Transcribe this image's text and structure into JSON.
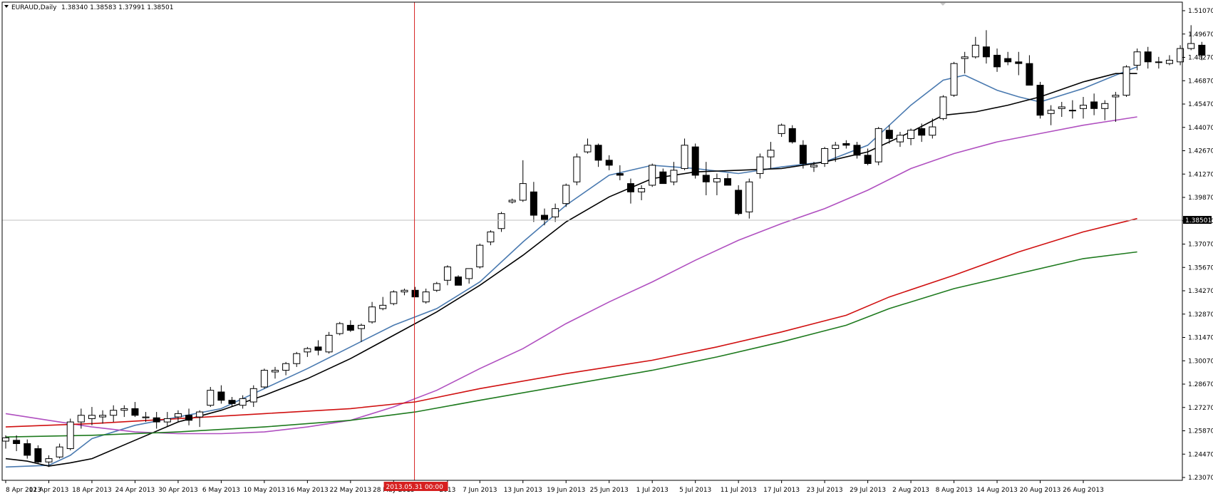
{
  "header": {
    "symbol": "EURAUD,Daily",
    "ohlc": "1.38340 1.38583 1.37991 1.38501"
  },
  "current_price_label": "1.38501",
  "crosshair_label": "2013.05.31 00:00",
  "colors": {
    "bull_fill": "#ffffff",
    "bear_fill": "#000000",
    "crosshair": "#d62020",
    "price_line": "#c0c0c0",
    "current_label_bg": "#000000"
  },
  "chart_data": {
    "type": "candlestick",
    "symbol": "EURAUD",
    "timeframe": "Daily",
    "ylim": [
      1.2307,
      1.5107
    ],
    "y_ticks": [
      "1.51070",
      "1.49670",
      "1.48270",
      "1.46870",
      "1.45470",
      "1.44070",
      "1.42670",
      "1.41270",
      "1.39870",
      "1.38470",
      "1.37070",
      "1.35670",
      "1.34270",
      "1.32870",
      "1.31470",
      "1.30070",
      "1.28670",
      "1.27270",
      "1.25870",
      "1.24470",
      "1.23070"
    ],
    "x_ticks": [
      "8 Apr 2013",
      "12 Apr 2013",
      "18 Apr 2013",
      "24 Apr 2013",
      "30 Apr 2013",
      "6 May 2013",
      "10 May 2013",
      "16 May 2013",
      "22 May 2013",
      "28 May 2013",
      "2013",
      "7 Jun 2013",
      "13 Jun 2013",
      "19 Jun 2013",
      "25 Jun 2013",
      "1 Jul 2013",
      "5 Jul 2013",
      "11 Jul 2013",
      "17 Jul 2013",
      "23 Jul 2013",
      "29 Jul 2013",
      "2 Aug 2013",
      "8 Aug 2013",
      "14 Aug 2013",
      "20 Aug 2013",
      "26 Aug 2013"
    ],
    "x_tick_index": [
      0,
      4,
      8,
      12,
      16,
      20,
      24,
      28,
      32,
      36,
      41,
      44,
      48,
      52,
      56,
      60,
      64,
      68,
      72,
      76,
      80,
      84,
      88,
      92,
      96,
      100
    ],
    "crosshair_index": 38,
    "current_price": 1.38501,
    "candles": [
      [
        1.2525,
        1.256,
        1.248,
        1.2545
      ],
      [
        1.253,
        1.256,
        1.2465,
        1.251
      ],
      [
        1.251,
        1.2535,
        1.242,
        1.244
      ],
      [
        1.248,
        1.25,
        1.239,
        1.24
      ],
      [
        1.24,
        1.244,
        1.237,
        1.242
      ],
      [
        1.243,
        1.251,
        1.242,
        1.249
      ],
      [
        1.248,
        1.266,
        1.247,
        1.264
      ],
      [
        1.264,
        1.272,
        1.26,
        1.268
      ],
      [
        1.266,
        1.273,
        1.262,
        1.268
      ],
      [
        1.267,
        1.271,
        1.263,
        1.268
      ],
      [
        1.268,
        1.274,
        1.264,
        1.271
      ],
      [
        1.271,
        1.274,
        1.267,
        1.272
      ],
      [
        1.272,
        1.276,
        1.267,
        1.268
      ],
      [
        1.2665,
        1.27,
        1.264,
        1.267
      ],
      [
        1.2665,
        1.27,
        1.26,
        1.264
      ],
      [
        1.264,
        1.27,
        1.261,
        1.266
      ],
      [
        1.267,
        1.271,
        1.264,
        1.269
      ],
      [
        1.268,
        1.272,
        1.262,
        1.265
      ],
      [
        1.267,
        1.271,
        1.261,
        1.27
      ],
      [
        1.274,
        1.285,
        1.273,
        1.283
      ],
      [
        1.282,
        1.286,
        1.275,
        1.277
      ],
      [
        1.277,
        1.279,
        1.273,
        1.275
      ],
      [
        1.274,
        1.28,
        1.272,
        1.278
      ],
      [
        1.276,
        1.286,
        1.273,
        1.284
      ],
      [
        1.285,
        1.296,
        1.284,
        1.295
      ],
      [
        1.294,
        1.297,
        1.29,
        1.295
      ],
      [
        1.295,
        1.3,
        1.292,
        1.299
      ],
      [
        1.299,
        1.306,
        1.297,
        1.305
      ],
      [
        1.306,
        1.309,
        1.303,
        1.308
      ],
      [
        1.309,
        1.313,
        1.304,
        1.307
      ],
      [
        1.306,
        1.318,
        1.305,
        1.316
      ],
      [
        1.317,
        1.324,
        1.316,
        1.323
      ],
      [
        1.322,
        1.325,
        1.318,
        1.319
      ],
      [
        1.32,
        1.323,
        1.312,
        1.322
      ],
      [
        1.324,
        1.336,
        1.323,
        1.333
      ],
      [
        1.332,
        1.339,
        1.331,
        1.334
      ],
      [
        1.335,
        1.343,
        1.334,
        1.342
      ],
      [
        1.342,
        1.344,
        1.34,
        1.343
      ],
      [
        1.343,
        1.345,
        1.339,
        1.339
      ],
      [
        1.336,
        1.344,
        1.335,
        1.342
      ],
      [
        1.343,
        1.348,
        1.342,
        1.347
      ],
      [
        1.349,
        1.358,
        1.346,
        1.357
      ],
      [
        1.351,
        1.352,
        1.346,
        1.346
      ],
      [
        1.35,
        1.355,
        1.347,
        1.356
      ],
      [
        1.357,
        1.371,
        1.356,
        1.37
      ],
      [
        1.372,
        1.379,
        1.37,
        1.378
      ],
      [
        1.38,
        1.39,
        1.378,
        1.389
      ],
      [
        1.396,
        1.398,
        1.395,
        1.397
      ],
      [
        1.397,
        1.421,
        1.396,
        1.407
      ],
      [
        1.402,
        1.408,
        1.384,
        1.388
      ],
      [
        1.388,
        1.392,
        1.382,
        1.385
      ],
      [
        1.387,
        1.395,
        1.384,
        1.392
      ],
      [
        1.395,
        1.407,
        1.393,
        1.406
      ],
      [
        1.408,
        1.425,
        1.406,
        1.423
      ],
      [
        1.426,
        1.434,
        1.425,
        1.43
      ],
      [
        1.43,
        1.431,
        1.417,
        1.421
      ],
      [
        1.421,
        1.424,
        1.415,
        1.418
      ],
      [
        1.413,
        1.418,
        1.409,
        1.412
      ],
      [
        1.407,
        1.41,
        1.395,
        1.402
      ],
      [
        1.402,
        1.406,
        1.397,
        1.404
      ],
      [
        1.406,
        1.419,
        1.405,
        1.418
      ],
      [
        1.414,
        1.416,
        1.407,
        1.407
      ],
      [
        1.408,
        1.42,
        1.406,
        1.415
      ],
      [
        1.416,
        1.434,
        1.415,
        1.43
      ],
      [
        1.429,
        1.431,
        1.41,
        1.412
      ],
      [
        1.412,
        1.42,
        1.4,
        1.408
      ],
      [
        1.408,
        1.413,
        1.4,
        1.41
      ],
      [
        1.41,
        1.413,
        1.406,
        1.406
      ],
      [
        1.403,
        1.406,
        1.388,
        1.389
      ],
      [
        1.39,
        1.41,
        1.386,
        1.408
      ],
      [
        1.413,
        1.425,
        1.41,
        1.423
      ],
      [
        1.423,
        1.432,
        1.416,
        1.427
      ],
      [
        1.437,
        1.443,
        1.435,
        1.442
      ],
      [
        1.44,
        1.442,
        1.431,
        1.432
      ],
      [
        1.43,
        1.433,
        1.416,
        1.419
      ],
      [
        1.417,
        1.42,
        1.414,
        1.418
      ],
      [
        1.419,
        1.429,
        1.417,
        1.428
      ],
      [
        1.428,
        1.432,
        1.42,
        1.43
      ],
      [
        1.431,
        1.433,
        1.428,
        1.43
      ],
      [
        1.43,
        1.432,
        1.422,
        1.424
      ],
      [
        1.424,
        1.428,
        1.418,
        1.419
      ],
      [
        1.42,
        1.441,
        1.418,
        1.44
      ],
      [
        1.439,
        1.442,
        1.431,
        1.434
      ],
      [
        1.432,
        1.438,
        1.429,
        1.436
      ],
      [
        1.434,
        1.44,
        1.43,
        1.439
      ],
      [
        1.44,
        1.443,
        1.432,
        1.436
      ],
      [
        1.436,
        1.446,
        1.434,
        1.441
      ],
      [
        1.446,
        1.46,
        1.445,
        1.459
      ],
      [
        1.46,
        1.48,
        1.459,
        1.479
      ],
      [
        1.482,
        1.486,
        1.473,
        1.483
      ],
      [
        1.483,
        1.495,
        1.482,
        1.49
      ],
      [
        1.489,
        1.499,
        1.479,
        1.483
      ],
      [
        1.484,
        1.488,
        1.474,
        1.477
      ],
      [
        1.482,
        1.486,
        1.478,
        1.48
      ],
      [
        1.48,
        1.486,
        1.472,
        1.479
      ],
      [
        1.479,
        1.484,
        1.466,
        1.466
      ],
      [
        1.466,
        1.468,
        1.446,
        1.448
      ],
      [
        1.449,
        1.454,
        1.442,
        1.451
      ],
      [
        1.452,
        1.456,
        1.447,
        1.453
      ],
      [
        1.451,
        1.457,
        1.446,
        1.451
      ],
      [
        1.452,
        1.459,
        1.446,
        1.454
      ],
      [
        1.456,
        1.461,
        1.448,
        1.452
      ],
      [
        1.452,
        1.457,
        1.445,
        1.455
      ],
      [
        1.459,
        1.462,
        1.444,
        1.46
      ],
      [
        1.46,
        1.478,
        1.459,
        1.477
      ],
      [
        1.478,
        1.488,
        1.475,
        1.486
      ],
      [
        1.486,
        1.489,
        1.476,
        1.48
      ],
      [
        1.48,
        1.483,
        1.476,
        1.48
      ],
      [
        1.479,
        1.484,
        1.478,
        1.481
      ],
      [
        1.48,
        1.49,
        1.478,
        1.488
      ],
      [
        1.488,
        1.502,
        1.487,
        1.491
      ],
      [
        1.49,
        1.492,
        1.481,
        1.484
      ]
    ],
    "series": [
      {
        "color": "#4a7ab0",
        "points": [
          [
            0,
            1.237
          ],
          [
            4,
            1.238
          ],
          [
            6,
            1.244
          ],
          [
            8,
            1.254
          ],
          [
            12,
            1.262
          ],
          [
            16,
            1.267
          ],
          [
            20,
            1.272
          ],
          [
            24,
            1.284
          ],
          [
            28,
            1.296
          ],
          [
            32,
            1.309
          ],
          [
            36,
            1.322
          ],
          [
            40,
            1.332
          ],
          [
            44,
            1.348
          ],
          [
            48,
            1.372
          ],
          [
            52,
            1.394
          ],
          [
            56,
            1.412
          ],
          [
            60,
            1.418
          ],
          [
            64,
            1.416
          ],
          [
            68,
            1.413
          ],
          [
            72,
            1.417
          ],
          [
            76,
            1.42
          ],
          [
            80,
            1.43
          ],
          [
            84,
            1.454
          ],
          [
            87,
            1.469
          ],
          [
            89,
            1.472
          ],
          [
            92,
            1.463
          ],
          [
            94,
            1.459
          ],
          [
            96,
            1.456
          ],
          [
            100,
            1.464
          ],
          [
            103,
            1.472
          ],
          [
            105,
            1.477
          ]
        ]
      },
      {
        "color": "#000000",
        "points": [
          [
            0,
            1.242
          ],
          [
            2,
            1.2405
          ],
          [
            4,
            1.2375
          ],
          [
            6,
            1.2395
          ],
          [
            8,
            1.242
          ],
          [
            12,
            1.253
          ],
          [
            16,
            1.264
          ],
          [
            20,
            1.271
          ],
          [
            24,
            1.28
          ],
          [
            28,
            1.29
          ],
          [
            32,
            1.302
          ],
          [
            36,
            1.316
          ],
          [
            40,
            1.33
          ],
          [
            44,
            1.346
          ],
          [
            48,
            1.364
          ],
          [
            52,
            1.384
          ],
          [
            56,
            1.399
          ],
          [
            60,
            1.41
          ],
          [
            64,
            1.414
          ],
          [
            68,
            1.415
          ],
          [
            72,
            1.416
          ],
          [
            76,
            1.42
          ],
          [
            80,
            1.426
          ],
          [
            84,
            1.438
          ],
          [
            87,
            1.448
          ],
          [
            90,
            1.45
          ],
          [
            93,
            1.454
          ],
          [
            96,
            1.459
          ],
          [
            100,
            1.468
          ],
          [
            103,
            1.473
          ],
          [
            105,
            1.473
          ]
        ]
      },
      {
        "color": "#b050c0",
        "points": [
          [
            0,
            1.269
          ],
          [
            4,
            1.265
          ],
          [
            8,
            1.261
          ],
          [
            12,
            1.258
          ],
          [
            16,
            1.257
          ],
          [
            20,
            1.257
          ],
          [
            24,
            1.258
          ],
          [
            28,
            1.261
          ],
          [
            32,
            1.265
          ],
          [
            36,
            1.273
          ],
          [
            40,
            1.283
          ],
          [
            44,
            1.296
          ],
          [
            48,
            1.308
          ],
          [
            52,
            1.323
          ],
          [
            56,
            1.336
          ],
          [
            60,
            1.348
          ],
          [
            64,
            1.361
          ],
          [
            68,
            1.373
          ],
          [
            72,
            1.383
          ],
          [
            76,
            1.392
          ],
          [
            80,
            1.403
          ],
          [
            84,
            1.416
          ],
          [
            88,
            1.425
          ],
          [
            92,
            1.432
          ],
          [
            96,
            1.437
          ],
          [
            100,
            1.442
          ],
          [
            105,
            1.447
          ]
        ]
      },
      {
        "color": "#d01010",
        "points": [
          [
            0,
            1.261
          ],
          [
            8,
            1.263
          ],
          [
            16,
            1.266
          ],
          [
            24,
            1.269
          ],
          [
            32,
            1.272
          ],
          [
            38,
            1.276
          ],
          [
            44,
            1.284
          ],
          [
            52,
            1.293
          ],
          [
            60,
            1.301
          ],
          [
            66,
            1.309
          ],
          [
            72,
            1.318
          ],
          [
            78,
            1.328
          ],
          [
            82,
            1.339
          ],
          [
            88,
            1.352
          ],
          [
            94,
            1.366
          ],
          [
            100,
            1.378
          ],
          [
            105,
            1.386
          ]
        ]
      },
      {
        "color": "#1e7a1e",
        "points": [
          [
            0,
            1.255
          ],
          [
            8,
            1.256
          ],
          [
            16,
            1.258
          ],
          [
            24,
            1.261
          ],
          [
            32,
            1.265
          ],
          [
            38,
            1.27
          ],
          [
            44,
            1.277
          ],
          [
            52,
            1.286
          ],
          [
            60,
            1.295
          ],
          [
            66,
            1.303
          ],
          [
            72,
            1.312
          ],
          [
            78,
            1.322
          ],
          [
            82,
            1.332
          ],
          [
            88,
            1.344
          ],
          [
            94,
            1.353
          ],
          [
            100,
            1.362
          ],
          [
            105,
            1.366
          ]
        ]
      }
    ]
  }
}
